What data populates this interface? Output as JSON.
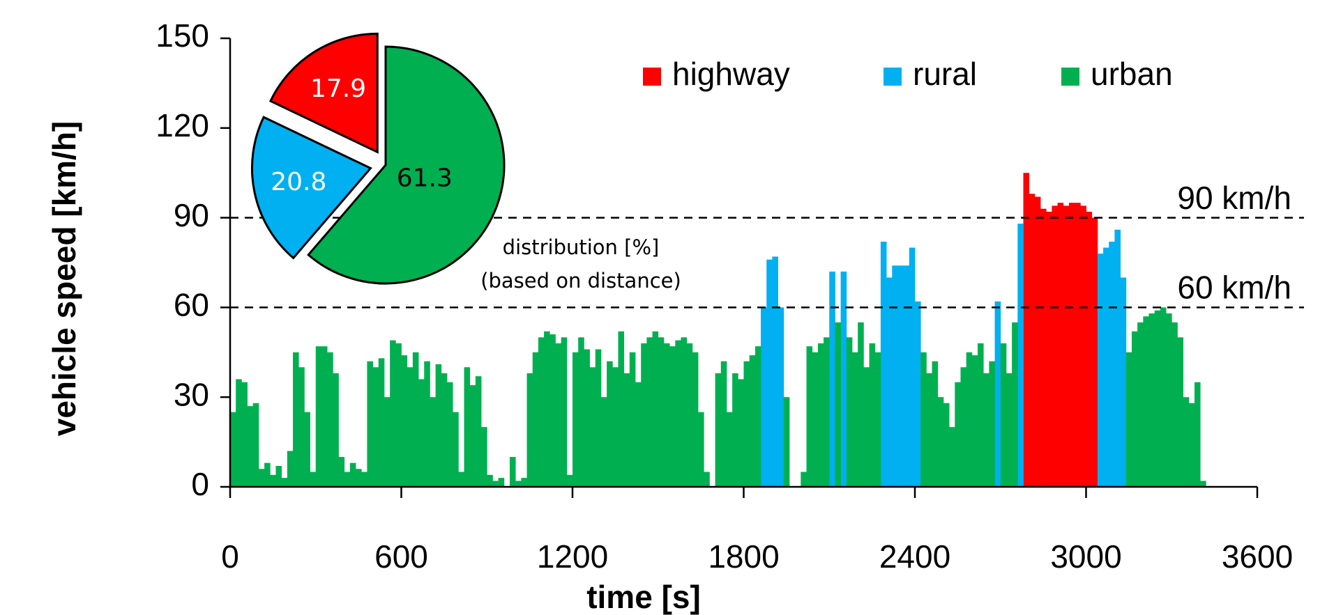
{
  "chart_data": [
    {
      "type": "bar",
      "xlabel": "time [s]",
      "ylabel": "vehicle speed [km/h]",
      "xlim": [
        0,
        3600
      ],
      "xticks": [
        0,
        600,
        1200,
        1800,
        2400,
        3000,
        3600
      ],
      "ylim": [
        0,
        150
      ],
      "yticks": [
        0,
        30,
        60,
        90,
        120,
        150
      ],
      "bin_width": 20,
      "reference_lines": [
        {
          "value": 90,
          "label": "90 km/h"
        },
        {
          "value": 60,
          "label": "60 km/h"
        }
      ],
      "series": [
        {
          "name": "highway",
          "color": "#ff0000",
          "x": [
            2780,
            2800,
            2820,
            2840,
            2860,
            2880,
            2900,
            2920,
            2940,
            2960,
            2980,
            3000,
            3020
          ],
          "values": [
            105,
            98,
            97,
            93,
            92,
            94,
            95,
            94,
            95,
            95,
            94,
            92,
            90
          ]
        },
        {
          "name": "rural",
          "color": "#00b0f0",
          "x": [
            1860,
            1880,
            1900,
            1920,
            2100,
            2140,
            2280,
            2300,
            2320,
            2340,
            2360,
            2380,
            2400,
            2680,
            2760,
            3040,
            3060,
            3080,
            3100,
            3120
          ],
          "values": [
            60,
            76,
            77,
            60,
            72,
            72,
            82,
            70,
            74,
            74,
            74,
            80,
            62,
            62,
            88,
            78,
            80,
            82,
            86,
            70
          ]
        },
        {
          "name": "urban",
          "color": "#00b050",
          "x": [
            0,
            20,
            40,
            60,
            80,
            100,
            120,
            140,
            160,
            180,
            200,
            220,
            240,
            260,
            280,
            300,
            320,
            340,
            360,
            380,
            400,
            420,
            440,
            460,
            480,
            500,
            520,
            540,
            560,
            580,
            600,
            620,
            640,
            660,
            680,
            700,
            720,
            740,
            760,
            780,
            800,
            820,
            840,
            860,
            880,
            900,
            920,
            940,
            960,
            980,
            1000,
            1020,
            1040,
            1060,
            1080,
            1100,
            1120,
            1140,
            1160,
            1180,
            1200,
            1220,
            1240,
            1260,
            1280,
            1300,
            1320,
            1340,
            1360,
            1380,
            1400,
            1420,
            1440,
            1460,
            1480,
            1500,
            1520,
            1540,
            1560,
            1580,
            1600,
            1620,
            1640,
            1660,
            1680,
            1700,
            1720,
            1740,
            1760,
            1780,
            1800,
            1820,
            1840,
            1940,
            1960,
            1980,
            2000,
            2020,
            2040,
            2060,
            2080,
            2120,
            2160,
            2180,
            2200,
            2220,
            2240,
            2260,
            2420,
            2440,
            2460,
            2480,
            2500,
            2520,
            2540,
            2560,
            2580,
            2600,
            2620,
            2640,
            2660,
            2700,
            2720,
            2740,
            3140,
            3160,
            3180,
            3200,
            3220,
            3240,
            3260,
            3280,
            3300,
            3320,
            3340,
            3360,
            3380,
            3400
          ],
          "values": [
            25,
            36,
            35,
            27,
            28,
            6,
            8,
            4,
            7,
            3,
            12,
            45,
            40,
            25,
            5,
            47,
            47,
            45,
            38,
            10,
            5,
            8,
            6,
            5,
            42,
            40,
            43,
            30,
            49,
            48,
            44,
            40,
            45,
            36,
            42,
            30,
            41,
            38,
            35,
            25,
            5,
            40,
            34,
            37,
            20,
            4,
            2,
            3,
            0,
            10,
            2,
            3,
            38,
            45,
            50,
            52,
            51,
            48,
            50,
            4,
            45,
            50,
            46,
            40,
            46,
            30,
            42,
            40,
            52,
            38,
            45,
            35,
            48,
            50,
            52,
            50,
            48,
            47,
            49,
            50,
            48,
            45,
            25,
            5,
            0,
            38,
            42,
            25,
            38,
            36,
            42,
            44,
            47,
            30,
            0,
            0,
            5,
            47,
            45,
            48,
            50,
            55,
            50,
            45,
            55,
            40,
            48,
            45,
            45,
            38,
            42,
            30,
            28,
            20,
            35,
            40,
            45,
            44,
            48,
            38,
            42,
            48,
            38,
            55,
            45,
            52,
            55,
            57,
            58,
            59,
            60,
            58,
            55,
            50,
            30,
            28,
            35,
            2
          ]
        }
      ],
      "legend": "top-right"
    },
    {
      "type": "pie",
      "title": "distribution [%]",
      "subtitle": "(based on distance)",
      "categories": [
        "highway",
        "rural",
        "urban"
      ],
      "values": [
        17.9,
        20.8,
        61.3
      ],
      "colors": [
        "#ff0000",
        "#00b0f0",
        "#00b050"
      ],
      "label_colors": [
        "#ffffff",
        "#ffffff",
        "#000000"
      ]
    }
  ]
}
